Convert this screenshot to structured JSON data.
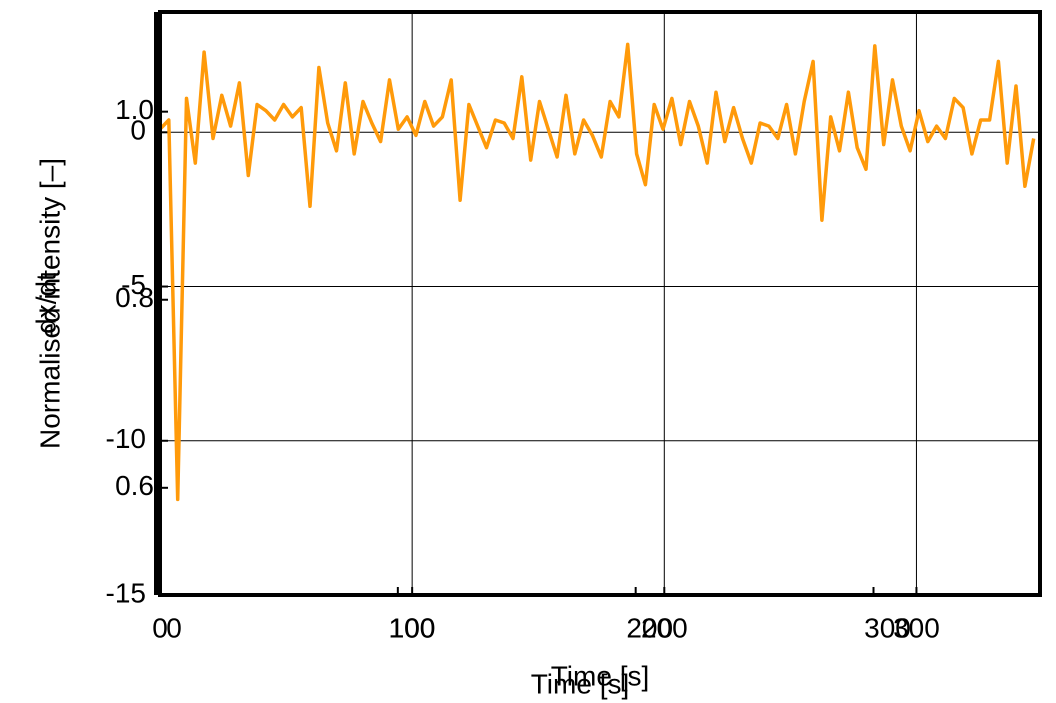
{
  "chart_data": [
    {
      "type": "line",
      "xlabel": "Time [s]",
      "ylabel": "dx/dt",
      "xlim": [
        0,
        349
      ],
      "ylim": [
        -15,
        3.9
      ],
      "xticks": [
        0,
        100,
        200,
        300
      ],
      "yticks": [
        -15,
        -10,
        -5,
        0
      ],
      "grid": true,
      "series": [
        {
          "color": "#ff9a0a",
          "x": [
            0,
            3.5,
            7,
            10.5,
            14,
            17.5,
            21,
            24.5,
            28,
            31.5,
            35,
            38.5,
            42,
            45.5,
            49,
            52.5,
            56,
            59.5,
            63,
            66.5,
            70,
            73.5,
            77,
            80.5,
            84,
            87.5,
            91,
            94.5,
            98,
            101.5,
            105,
            108.5,
            112,
            115.5,
            119,
            122.5,
            126,
            129.5,
            133,
            136.5,
            140,
            143.5,
            147,
            150.5,
            154,
            157.5,
            161,
            164.5,
            168,
            171.5,
            175,
            178.5,
            182,
            185.5,
            189,
            192.5,
            196,
            199.5,
            203,
            206.5,
            210,
            213.5,
            217,
            220.5,
            224,
            227.5,
            231,
            234.5,
            238,
            241.5,
            245,
            248.5,
            252,
            255.5,
            259,
            262.5,
            266,
            269.5,
            273,
            276.5,
            280,
            283.5,
            287,
            290.5,
            294,
            297.5,
            301,
            304.5,
            308,
            311.5,
            315,
            318.5,
            322,
            325.5,
            329,
            332.5,
            336,
            339.5,
            343,
            346.5
          ],
          "values": [
            0.1,
            0.4,
            -11.9,
            1.1,
            -1.0,
            2.6,
            -0.2,
            1.2,
            0.2,
            1.6,
            -1.4,
            0.9,
            0.7,
            0.4,
            0.9,
            0.5,
            0.8,
            -2.4,
            2.1,
            0.3,
            -0.6,
            1.6,
            -0.7,
            1.0,
            0.3,
            -0.3,
            1.7,
            0.1,
            0.5,
            -0.1,
            1.0,
            0.2,
            0.5,
            1.7,
            -2.2,
            0.9,
            0.2,
            -0.5,
            0.4,
            0.3,
            -0.2,
            1.8,
            -0.9,
            1.0,
            0.1,
            -0.8,
            1.2,
            -0.7,
            0.4,
            -0.1,
            -0.8,
            1.0,
            0.5,
            2.85,
            -0.7,
            -1.7,
            0.9,
            0.1,
            1.1,
            -0.4,
            1.0,
            0.2,
            -1.0,
            1.3,
            -0.3,
            0.8,
            -0.2,
            -1.0,
            0.3,
            0.2,
            -0.2,
            0.9,
            -0.7,
            1.0,
            2.3,
            -2.85,
            0.5,
            -0.6,
            1.3,
            -0.5,
            -1.2,
            2.8,
            -0.4,
            1.7,
            0.2,
            -0.6,
            0.7,
            -0.3,
            0.2,
            -0.2,
            1.1,
            0.8,
            -0.7,
            0.4,
            0.4,
            2.3,
            -1.0,
            1.5,
            -1.75,
            -0.2
          ]
        }
      ]
    },
    {
      "type": "line",
      "xlabel": "Time [s]",
      "ylabel": "Normalised intensity [–]",
      "xlim": [
        0,
        370
      ],
      "ylim": [
        0.486,
        1.106
      ],
      "xticks": [
        0,
        100,
        200,
        300
      ],
      "yticks": [
        {
          "value": 0.6,
          "label": "0.6"
        },
        {
          "value": 0.8,
          "label": "0.8"
        },
        {
          "value": 1.0,
          "label": "1.0"
        }
      ],
      "grid": false
    }
  ]
}
